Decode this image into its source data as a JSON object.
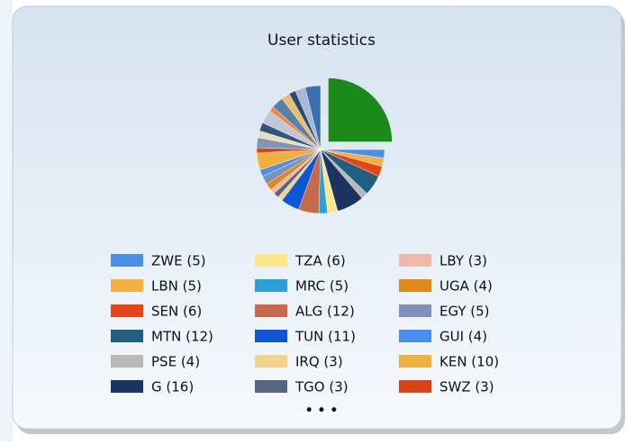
{
  "chart_data": {
    "type": "pie",
    "title": "User statistics",
    "categories": [
      null,
      "ZWE (5)",
      "LBN (5)",
      "SEN (6)",
      "MTN (12)",
      "PSE (4)",
      "G (16)",
      "TZA (6)",
      "MRC (5)",
      "ALG (12)",
      "TUN (11)",
      "IRQ (3)",
      "TGO (3)",
      "LBY (3)",
      "UGA (4)",
      "EGY (5)",
      "GUI (4)",
      "KEN (10)",
      "SWZ (3)",
      null,
      null,
      null,
      null,
      null,
      null,
      null,
      null,
      null,
      null
    ],
    "values": [
      58,
      5,
      5,
      6,
      12,
      4,
      16,
      6,
      5,
      12,
      11,
      3,
      3,
      3,
      4,
      5,
      4,
      10,
      3,
      6,
      4,
      5,
      8,
      3,
      7,
      5,
      4,
      6,
      9
    ],
    "colors": [
      "#1a8a1a",
      "#4a90e2",
      "#f5b041",
      "#e8441a",
      "#1f6080",
      "#b8b8b8",
      "#1c3560",
      "#fde58a",
      "#2a9fd8",
      "#c8684a",
      "#0d56d8",
      "#f2d38c",
      "#556680",
      "#f0b8a8",
      "#e08818",
      "#8090b8",
      "#4a8ef0",
      "#f0b040",
      "#d84418",
      "#7f95b5",
      "#e8e0b0",
      "#34557a",
      "#c0c8d8",
      "#f08a40",
      "#5a7fa8",
      "#e6c070",
      "#2d4d6e",
      "#a8b8d0",
      "#3a6fb0"
    ],
    "legend_more": "• • •"
  }
}
